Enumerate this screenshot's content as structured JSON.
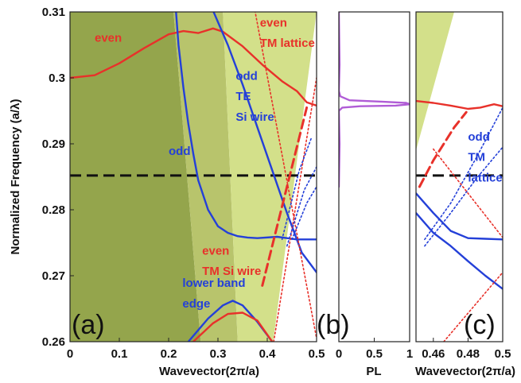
{
  "chart_data": [
    {
      "panel": "a",
      "type": "line",
      "panel_label": "(a)",
      "xlabel": "Wavevector(2π/a)",
      "ylabel": "Normalized Frequency (a/λ)",
      "xlim": [
        0,
        0.5
      ],
      "ylim": [
        0.26,
        0.31
      ],
      "xticks": [
        "0",
        "0.1",
        "0.2",
        "0.3",
        "0.4",
        "0.5"
      ],
      "yticks": [
        "0.26",
        "0.27",
        "0.28",
        "0.29",
        "0.3",
        "0.31"
      ],
      "reference_line_y": 0.2852,
      "colors": {
        "red": "#e8312a",
        "blue": "#2440d8",
        "light_green": "#d3e08a",
        "mid_green": "#b8c46c",
        "dark_green": "#94a54c"
      },
      "regions": [
        {
          "color": "dark_green",
          "polygon": [
            [
              0,
              0.26
            ],
            [
              0,
              0.31
            ],
            [
              0.21,
              0.31
            ],
            [
              0.265,
              0.26
            ]
          ]
        },
        {
          "color": "mid_green",
          "polygon": [
            [
              0.21,
              0.31
            ],
            [
              0.265,
              0.26
            ],
            [
              0.34,
              0.26
            ],
            [
              0.31,
              0.31
            ]
          ]
        },
        {
          "color": "light_green",
          "polygon": [
            [
              0.31,
              0.31
            ],
            [
              0.34,
              0.26
            ],
            [
              0.412,
              0.26
            ],
            [
              0.5,
              0.31
            ]
          ]
        }
      ],
      "series": [
        {
          "name": "even",
          "color": "red",
          "style": "solid",
          "points": [
            [
              0,
              0.3
            ],
            [
              0.05,
              0.3004
            ],
            [
              0.1,
              0.3022
            ],
            [
              0.15,
              0.3045
            ],
            [
              0.2,
              0.3066
            ],
            [
              0.23,
              0.3071
            ],
            [
              0.26,
              0.3068
            ],
            [
              0.29,
              0.3075
            ],
            [
              0.31,
              0.307
            ],
            [
              0.35,
              0.3048
            ],
            [
              0.39,
              0.302
            ],
            [
              0.43,
              0.2995
            ],
            [
              0.46,
              0.298
            ],
            [
              0.48,
              0.2963
            ],
            [
              0.5,
              0.2958
            ]
          ]
        },
        {
          "name": "odd",
          "color": "blue",
          "style": "solid",
          "points": [
            [
              0.215,
              0.31
            ],
            [
              0.22,
              0.305
            ],
            [
              0.23,
              0.2985
            ],
            [
              0.24,
              0.293
            ],
            [
              0.25,
              0.2885
            ],
            [
              0.26,
              0.2845
            ],
            [
              0.28,
              0.28
            ],
            [
              0.3,
              0.2775
            ],
            [
              0.32,
              0.2765
            ],
            [
              0.34,
              0.276
            ],
            [
              0.36,
              0.2758
            ],
            [
              0.38,
              0.2757
            ],
            [
              0.42,
              0.2759
            ],
            [
              0.44,
              0.2757
            ],
            [
              0.46,
              0.2755
            ],
            [
              0.5,
              0.2755
            ]
          ]
        },
        {
          "name": "odd TE Si wire",
          "color": "blue",
          "style": "solid",
          "points": [
            [
              0.29,
              0.3102
            ],
            [
              0.32,
              0.305
            ],
            [
              0.35,
              0.299
            ],
            [
              0.38,
              0.2925
            ],
            [
              0.41,
              0.286
            ],
            [
              0.44,
              0.2795
            ],
            [
              0.47,
              0.2735
            ],
            [
              0.5,
              0.2705
            ]
          ]
        },
        {
          "name": "even TM Si wire",
          "color": "red",
          "style": "dashed",
          "points": [
            [
              0.39,
              0.2685
            ],
            [
              0.41,
              0.2745
            ],
            [
              0.43,
              0.2805
            ],
            [
              0.45,
              0.2865
            ],
            [
              0.47,
              0.2925
            ],
            [
              0.48,
              0.2955
            ]
          ]
        },
        {
          "name": "even TM lattice",
          "color": "red",
          "style": "dotted",
          "points": [
            [
              0.375,
              0.3102
            ],
            [
              0.5,
              0.2605
            ]
          ]
        },
        {
          "name": "red dotted light line",
          "color": "red",
          "style": "dotted",
          "points": [
            [
              0.413,
              0.26
            ],
            [
              0.5,
              0.3
            ]
          ]
        },
        {
          "name": "blue dotted 1",
          "color": "blue",
          "style": "dotted",
          "points": [
            [
              0.43,
              0.2755
            ],
            [
              0.465,
              0.286
            ],
            [
              0.49,
              0.291
            ]
          ]
        },
        {
          "name": "blue dotted 2",
          "color": "blue",
          "style": "dotted",
          "points": [
            [
              0.44,
              0.2745
            ],
            [
              0.475,
              0.283
            ],
            [
              0.5,
              0.2865
            ]
          ]
        },
        {
          "name": "blue dotted 3",
          "color": "blue",
          "style": "dotted",
          "points": [
            [
              0.45,
              0.2755
            ],
            [
              0.48,
              0.281
            ],
            [
              0.5,
              0.2835
            ]
          ]
        },
        {
          "name": "lower band edge",
          "color": "blue",
          "style": "solid",
          "points": [
            [
              0.24,
              0.26
            ],
            [
              0.28,
              0.2635
            ],
            [
              0.31,
              0.2655
            ],
            [
              0.33,
              0.2662
            ],
            [
              0.35,
              0.2655
            ],
            [
              0.38,
              0.263
            ],
            [
              0.41,
              0.26
            ]
          ]
        },
        {
          "name": "red lower arc",
          "color": "red",
          "style": "solid",
          "points": [
            [
              0.25,
              0.26
            ],
            [
              0.29,
              0.2628
            ],
            [
              0.32,
              0.2642
            ],
            [
              0.35,
              0.2644
            ],
            [
              0.38,
              0.2632
            ],
            [
              0.41,
              0.26
            ]
          ]
        }
      ],
      "annotations": [
        {
          "text": "even",
          "color": "red",
          "x": 0.05,
          "y": 0.3055
        },
        {
          "text": "odd",
          "color": "blue",
          "x": 0.2,
          "y": 0.2883
        },
        {
          "text": "odd",
          "color": "blue",
          "x": 0.336,
          "y": 0.2997
        },
        {
          "text": "TE",
          "color": "blue",
          "x": 0.336,
          "y": 0.2966
        },
        {
          "text": "Si wire",
          "color": "blue",
          "x": 0.336,
          "y": 0.2935
        },
        {
          "text": "even",
          "color": "red",
          "x": 0.385,
          "y": 0.3078
        },
        {
          "text": "TM lattice",
          "color": "red",
          "x": 0.385,
          "y": 0.3047
        },
        {
          "text": "even",
          "color": "red",
          "x": 0.268,
          "y": 0.2732
        },
        {
          "text": "TM Si wire",
          "color": "red",
          "x": 0.268,
          "y": 0.2701
        },
        {
          "text": "lower band",
          "color": "blue",
          "x": 0.228,
          "y": 0.2683
        },
        {
          "text": "edge",
          "color": "blue",
          "x": 0.228,
          "y": 0.2652
        }
      ]
    },
    {
      "panel": "b",
      "type": "line",
      "panel_label": "(b)",
      "xlabel": "PL",
      "xlim": [
        0,
        1
      ],
      "ylim": [
        0.26,
        0.31
      ],
      "xticks": [
        "0",
        "0.5",
        "1"
      ],
      "colors": {
        "magenta": "#b05cd6"
      },
      "series": [
        {
          "name": "PL spectrum",
          "color": "magenta",
          "points": [
            [
              0,
              0.31
            ],
            [
              0.01,
              0.302
            ],
            [
              0.0,
              0.298
            ],
            [
              0.02,
              0.2972
            ],
            [
              0.15,
              0.2966
            ],
            [
              0.6,
              0.2964
            ],
            [
              0.95,
              0.2962
            ],
            [
              1.0,
              0.296
            ],
            [
              0.8,
              0.2958
            ],
            [
              0.3,
              0.2957
            ],
            [
              0.05,
              0.2955
            ],
            [
              0.0,
              0.295
            ],
            [
              0.01,
              0.29
            ],
            [
              0.0,
              0.2835
            ]
          ]
        }
      ]
    },
    {
      "panel": "c",
      "type": "line",
      "panel_label": "(c)",
      "xlabel": "Wavevector(2π/a)",
      "xlim": [
        0.45,
        0.5
      ],
      "ylim": [
        0.26,
        0.31
      ],
      "xticks": [
        "0.46",
        "0.48",
        "0.5"
      ],
      "reference_line_y": 0.2852,
      "colors": {
        "red": "#e8312a",
        "blue": "#2440d8",
        "light_green": "#d3e08a"
      },
      "regions": [
        {
          "color": "light_green",
          "polygon": [
            [
              0.45,
              0.289
            ],
            [
              0.45,
              0.31
            ],
            [
              0.472,
              0.31
            ]
          ]
        }
      ],
      "series": [
        {
          "name": "red solid",
          "color": "red",
          "style": "solid",
          "points": [
            [
              0.45,
              0.2965
            ],
            [
              0.46,
              0.2962
            ],
            [
              0.47,
              0.2958
            ],
            [
              0.48,
              0.2953
            ],
            [
              0.487,
              0.2955
            ],
            [
              0.495,
              0.296
            ],
            [
              0.5,
              0.2957
            ]
          ]
        },
        {
          "name": "red dashed",
          "color": "red",
          "style": "dashed",
          "points": [
            [
              0.452,
              0.2835
            ],
            [
              0.46,
              0.2875
            ],
            [
              0.472,
              0.2925
            ],
            [
              0.479,
              0.2948
            ]
          ]
        },
        {
          "name": "blue solid upper",
          "color": "blue",
          "style": "solid",
          "points": [
            [
              0.45,
              0.2825
            ],
            [
              0.46,
              0.2795
            ],
            [
              0.47,
              0.2768
            ],
            [
              0.48,
              0.2757
            ],
            [
              0.49,
              0.2756
            ],
            [
              0.5,
              0.2755
            ]
          ]
        },
        {
          "name": "blue solid lower",
          "color": "blue",
          "style": "solid",
          "points": [
            [
              0.45,
              0.2795
            ],
            [
              0.46,
              0.2765
            ],
            [
              0.47,
              0.2745
            ],
            [
              0.48,
              0.2722
            ],
            [
              0.49,
              0.27
            ],
            [
              0.5,
              0.268
            ]
          ]
        },
        {
          "name": "blue dotted 1",
          "color": "blue",
          "style": "dotted",
          "points": [
            [
              0.455,
              0.2755
            ],
            [
              0.47,
              0.281
            ],
            [
              0.485,
              0.288
            ],
            [
              0.5,
              0.2955
            ]
          ]
        },
        {
          "name": "blue dotted 2",
          "color": "blue",
          "style": "dotted",
          "points": [
            [
              0.455,
              0.2745
            ],
            [
              0.47,
              0.2795
            ],
            [
              0.485,
              0.2848
            ],
            [
              0.5,
              0.2895
            ]
          ]
        },
        {
          "name": "red dotted 1",
          "color": "red",
          "style": "dotted",
          "points": [
            [
              0.46,
              0.2892
            ],
            [
              0.5,
              0.2758
            ]
          ]
        },
        {
          "name": "red dotted 2",
          "color": "red",
          "style": "dotted",
          "points": [
            [
              0.466,
              0.26
            ],
            [
              0.5,
              0.2705
            ]
          ]
        }
      ],
      "annotations": [
        {
          "text": "odd",
          "color": "blue",
          "x": 0.48,
          "y": 0.2905
        },
        {
          "text": "TM",
          "color": "blue",
          "x": 0.48,
          "y": 0.2874
        },
        {
          "text": "lattice",
          "color": "blue",
          "x": 0.48,
          "y": 0.2843
        }
      ]
    }
  ]
}
